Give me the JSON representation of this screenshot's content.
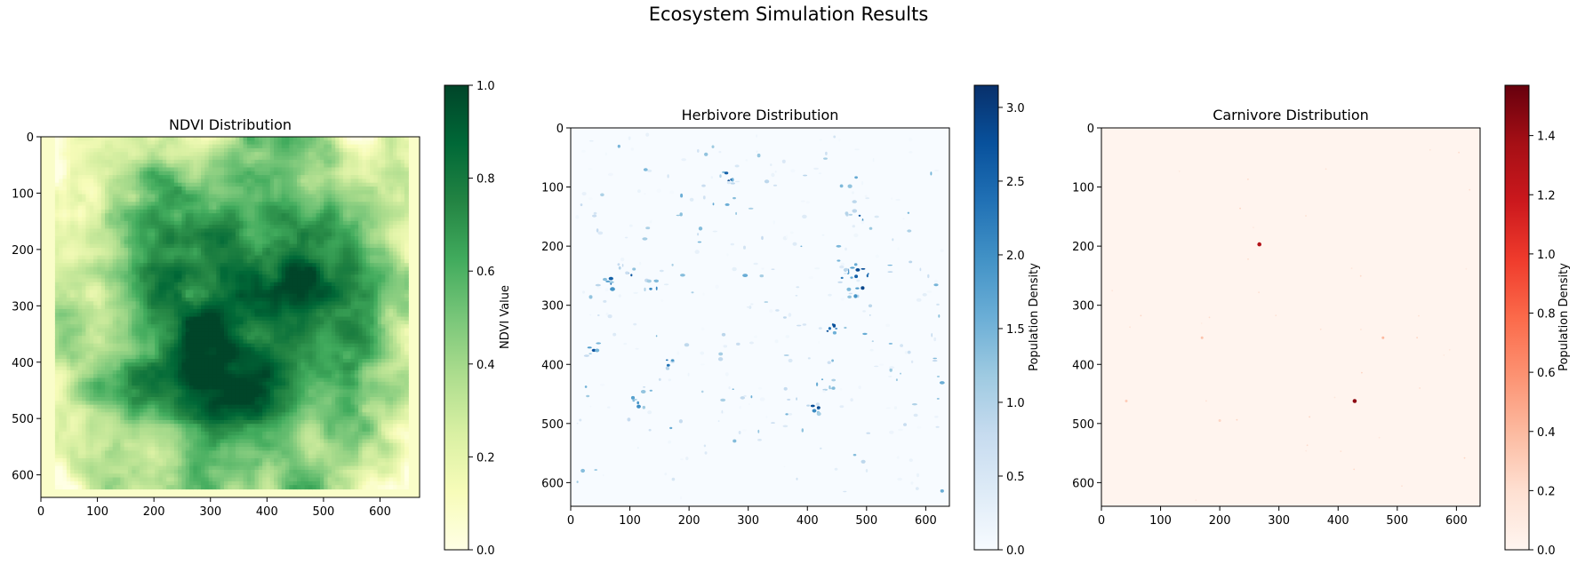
{
  "figure": {
    "suptitle": "Ecosystem Simulation Results"
  },
  "chart_data": [
    {
      "type": "heatmap",
      "title": "NDVI Distribution",
      "colormap": "YlGn",
      "colormap_stops": [
        "#ffffe5",
        "#f7fcb9",
        "#d9f0a3",
        "#addd8e",
        "#78c679",
        "#41ab5d",
        "#238443",
        "#006837",
        "#004529"
      ],
      "x_ticks": [
        0,
        100,
        200,
        300,
        400,
        500,
        600
      ],
      "y_ticks": [
        0,
        100,
        200,
        300,
        400,
        500,
        600
      ],
      "xlim": [
        0,
        670
      ],
      "ylim": [
        640,
        0
      ],
      "data_extent": [
        25,
        650,
        625,
        0
      ],
      "background_value": 0.08,
      "colorbar": {
        "label": "NDVI Value",
        "range": [
          0.0,
          1.0
        ],
        "ticks": [
          "0.0",
          "0.2",
          "0.4",
          "0.6",
          "0.8",
          "1.0"
        ]
      }
    },
    {
      "type": "heatmap",
      "title": "Herbivore Distribution",
      "colormap": "Blues",
      "colormap_stops": [
        "#f7fbff",
        "#deebf7",
        "#c6dbef",
        "#9ecae1",
        "#6baed6",
        "#4292c6",
        "#2171b5",
        "#08519c",
        "#08306b"
      ],
      "x_ticks": [
        0,
        100,
        200,
        300,
        400,
        500,
        600
      ],
      "y_ticks": [
        0,
        100,
        200,
        300,
        400,
        500,
        600
      ],
      "xlim": [
        0,
        640
      ],
      "ylim": [
        640,
        0
      ],
      "colorbar": {
        "label": "Population Density",
        "range": [
          0.0,
          3.15
        ],
        "ticks": [
          "0.0",
          "0.5",
          "1.0",
          "1.5",
          "2.0",
          "2.5",
          "3.0"
        ]
      }
    },
    {
      "type": "heatmap",
      "title": "Carnivore Distribution",
      "colormap": "Reds",
      "colormap_stops": [
        "#fff5f0",
        "#fee0d2",
        "#fcbba1",
        "#fc9272",
        "#fb6a4a",
        "#ef3b2c",
        "#cb181d",
        "#a50f15",
        "#67000d"
      ],
      "x_ticks": [
        0,
        100,
        200,
        300,
        400,
        500,
        600
      ],
      "y_ticks": [
        0,
        100,
        200,
        300,
        400,
        500,
        600
      ],
      "xlim": [
        0,
        640
      ],
      "ylim": [
        640,
        0
      ],
      "background_value": 0.01,
      "hotspots": [
        {
          "x": 267,
          "y": 197,
          "value": 1.3
        },
        {
          "x": 428,
          "y": 462,
          "value": 1.45
        },
        {
          "x": 476,
          "y": 355,
          "value": 0.4
        },
        {
          "x": 170,
          "y": 355,
          "value": 0.35
        },
        {
          "x": 42,
          "y": 462,
          "value": 0.3
        },
        {
          "x": 200,
          "y": 495,
          "value": 0.25
        }
      ],
      "colorbar": {
        "label": "Population Density",
        "range": [
          0.0,
          1.57
        ],
        "ticks": [
          "0.0",
          "0.2",
          "0.4",
          "0.6",
          "0.8",
          "1.0",
          "1.2",
          "1.4"
        ]
      }
    }
  ]
}
